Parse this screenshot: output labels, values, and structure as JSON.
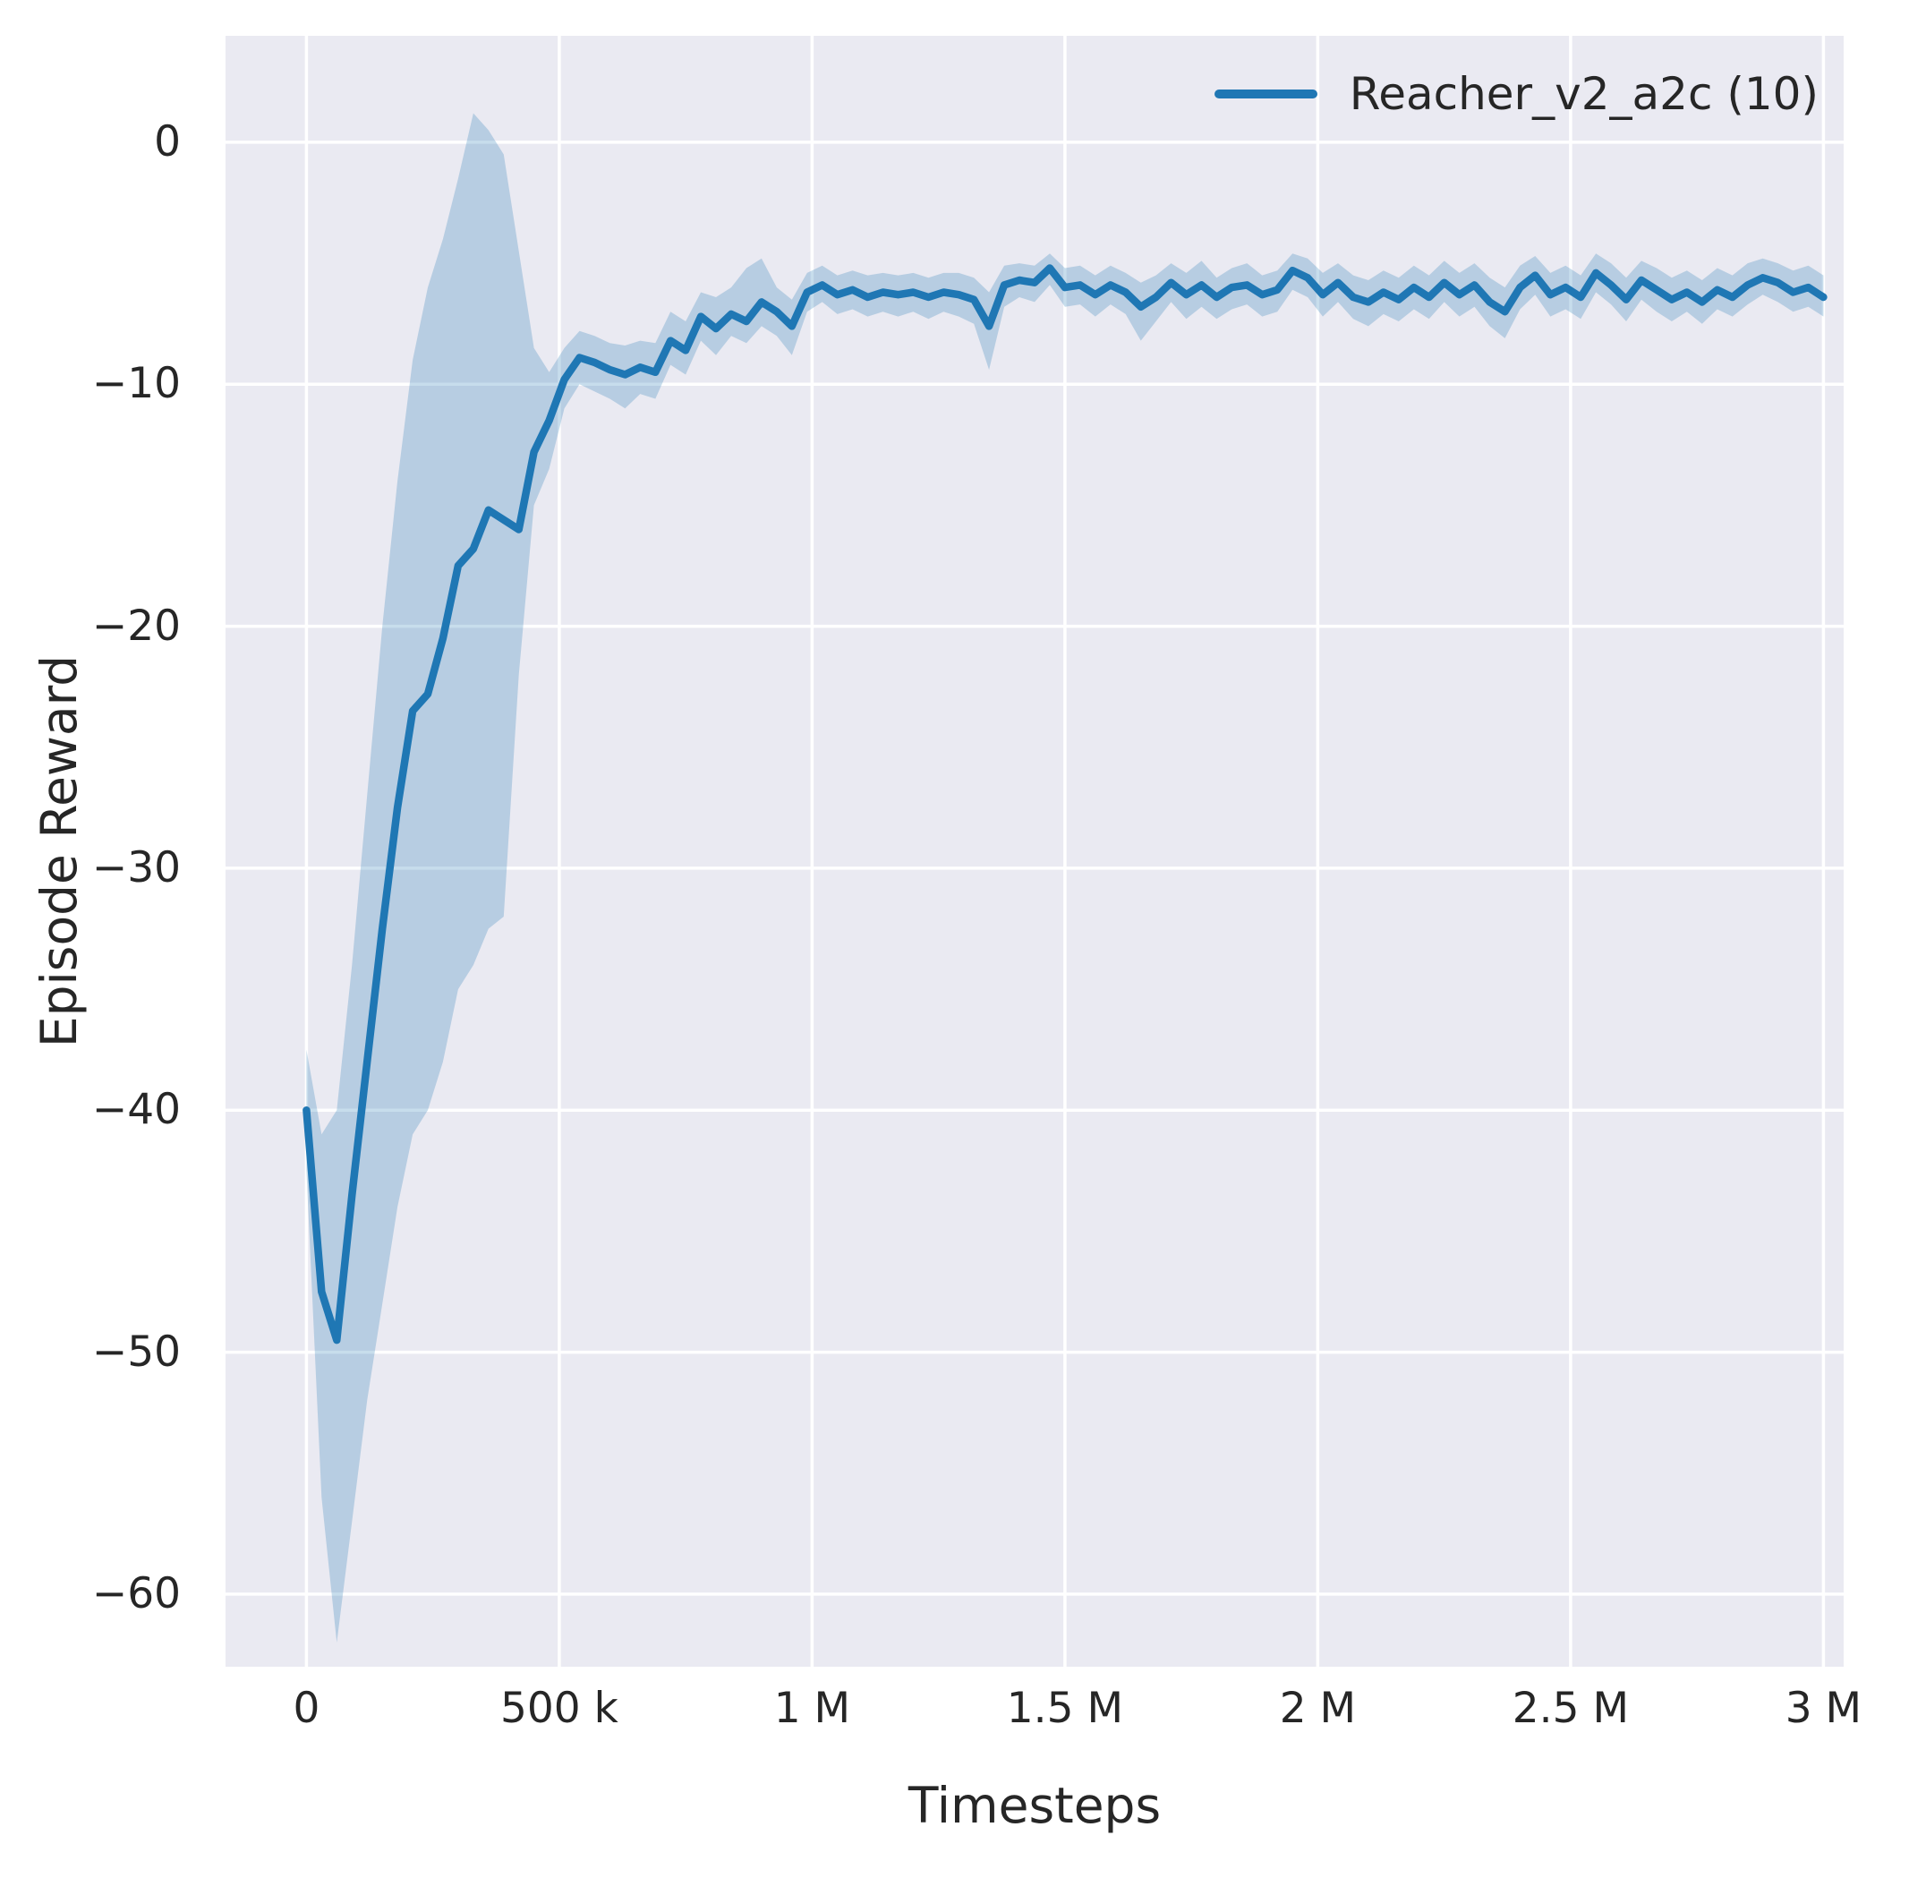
{
  "figure": {
    "background": "#ffffff",
    "plot_background": "#eaeaf2",
    "grid_color": "#ffffff",
    "text_color": "#262626"
  },
  "chart_data": {
    "type": "line",
    "title": "",
    "xlabel": "Timesteps",
    "ylabel": "Episode Reward",
    "xlim": [
      -160000,
      3040000
    ],
    "ylim": [
      -63,
      4.4
    ],
    "grid": true,
    "legend_position": "upper right",
    "xticks": {
      "values": [
        0,
        500000,
        1000000,
        1500000,
        2000000,
        2500000,
        3000000
      ],
      "labels": [
        "0",
        "500 k",
        "1 M",
        "1.5 M",
        "2 M",
        "2.5 M",
        "3 M"
      ]
    },
    "yticks": {
      "values": [
        0,
        -10,
        -20,
        -30,
        -40,
        -50,
        -60
      ],
      "labels": [
        "0",
        "−10",
        "−20",
        "−30",
        "−40",
        "−50",
        "−60"
      ]
    },
    "series": [
      {
        "name": "Reacher_v2_a2c (10)",
        "color": "#1f77b4",
        "band_color": "#1f77b4",
        "band_opacity": 0.25,
        "x": [
          0,
          30000,
          60000,
          90000,
          120000,
          150000,
          180000,
          210000,
          240000,
          270000,
          300000,
          330000,
          360000,
          390000,
          420000,
          450000,
          480000,
          510000,
          540000,
          570000,
          600000,
          630000,
          660000,
          690000,
          720000,
          750000,
          780000,
          810000,
          840000,
          870000,
          900000,
          930000,
          960000,
          990000,
          1020000,
          1050000,
          1080000,
          1110000,
          1140000,
          1170000,
          1200000,
          1230000,
          1260000,
          1290000,
          1320000,
          1350000,
          1380000,
          1410000,
          1440000,
          1470000,
          1500000,
          1530000,
          1560000,
          1590000,
          1620000,
          1650000,
          1680000,
          1710000,
          1740000,
          1770000,
          1800000,
          1830000,
          1860000,
          1890000,
          1920000,
          1950000,
          1980000,
          2010000,
          2040000,
          2070000,
          2100000,
          2130000,
          2160000,
          2190000,
          2220000,
          2250000,
          2280000,
          2310000,
          2340000,
          2370000,
          2400000,
          2430000,
          2460000,
          2490000,
          2520000,
          2550000,
          2580000,
          2610000,
          2640000,
          2670000,
          2700000,
          2730000,
          2760000,
          2790000,
          2820000,
          2850000,
          2880000,
          2910000,
          2940000,
          2970000,
          3000000
        ],
        "mean": [
          -40.0,
          -47.5,
          -49.5,
          -43.5,
          -38.0,
          -32.5,
          -27.5,
          -23.5,
          -22.8,
          -20.5,
          -17.5,
          -16.8,
          -15.2,
          -15.6,
          -16.0,
          -12.8,
          -11.5,
          -9.8,
          -8.9,
          -9.1,
          -9.4,
          -9.6,
          -9.3,
          -9.5,
          -8.2,
          -8.6,
          -7.2,
          -7.7,
          -7.1,
          -7.4,
          -6.6,
          -7.0,
          -7.6,
          -6.2,
          -5.9,
          -6.3,
          -6.1,
          -6.4,
          -6.2,
          -6.3,
          -6.2,
          -6.4,
          -6.2,
          -6.3,
          -6.5,
          -7.6,
          -5.9,
          -5.7,
          -5.8,
          -5.2,
          -6.0,
          -5.9,
          -6.3,
          -5.9,
          -6.2,
          -6.8,
          -6.4,
          -5.8,
          -6.3,
          -5.9,
          -6.4,
          -6.0,
          -5.9,
          -6.3,
          -6.1,
          -5.3,
          -5.6,
          -6.3,
          -5.8,
          -6.4,
          -6.6,
          -6.2,
          -6.5,
          -6.0,
          -6.4,
          -5.8,
          -6.3,
          -5.9,
          -6.6,
          -7.0,
          -6.0,
          -5.5,
          -6.3,
          -6.0,
          -6.4,
          -5.4,
          -5.9,
          -6.5,
          -5.7,
          -6.1,
          -6.5,
          -6.2,
          -6.6,
          -6.1,
          -6.4,
          -5.9,
          -5.6,
          -5.8,
          -6.2,
          -6.0,
          -6.4
        ],
        "lower": [
          -42.5,
          -56,
          -62,
          -57,
          -52,
          -48,
          -44,
          -41,
          -40,
          -38,
          -35,
          -34,
          -32.5,
          -32,
          -22,
          -15,
          -13.5,
          -11,
          -10,
          -10.3,
          -10.6,
          -11,
          -10.4,
          -10.6,
          -9.2,
          -9.6,
          -8.2,
          -8.8,
          -8.0,
          -8.3,
          -7.6,
          -8.0,
          -8.8,
          -7.0,
          -6.6,
          -7.1,
          -6.9,
          -7.2,
          -7.0,
          -7.2,
          -7.0,
          -7.3,
          -7.0,
          -7.2,
          -7.5,
          -9.4,
          -6.8,
          -6.4,
          -6.6,
          -5.9,
          -6.8,
          -6.7,
          -7.2,
          -6.7,
          -7.1,
          -8.2,
          -7.4,
          -6.6,
          -7.3,
          -6.8,
          -7.3,
          -6.9,
          -6.7,
          -7.2,
          -7.0,
          -6.1,
          -6.4,
          -7.2,
          -6.6,
          -7.3,
          -7.6,
          -7.1,
          -7.4,
          -6.9,
          -7.3,
          -6.6,
          -7.2,
          -6.8,
          -7.6,
          -8.1,
          -6.9,
          -6.3,
          -7.2,
          -6.9,
          -7.3,
          -6.2,
          -6.7,
          -7.4,
          -6.5,
          -7.0,
          -7.4,
          -7.0,
          -7.5,
          -6.9,
          -7.2,
          -6.7,
          -6.3,
          -6.6,
          -7.0,
          -6.8,
          -7.2
        ],
        "upper": [
          -37.5,
          -41,
          -40,
          -34,
          -27,
          -20,
          -14,
          -9,
          -6,
          -4,
          -1.5,
          1.2,
          0.5,
          -0.5,
          -4.5,
          -8.5,
          -9.5,
          -8.5,
          -7.8,
          -8.0,
          -8.3,
          -8.4,
          -8.2,
          -8.3,
          -7.0,
          -7.4,
          -6.2,
          -6.4,
          -6.0,
          -5.2,
          -4.8,
          -6.0,
          -6.5,
          -5.4,
          -5.1,
          -5.5,
          -5.3,
          -5.5,
          -5.4,
          -5.5,
          -5.4,
          -5.6,
          -5.4,
          -5.4,
          -5.6,
          -6.2,
          -5.1,
          -5.0,
          -5.1,
          -4.6,
          -5.2,
          -5.1,
          -5.5,
          -5.1,
          -5.4,
          -5.8,
          -5.5,
          -5.0,
          -5.4,
          -4.9,
          -5.6,
          -5.2,
          -5.0,
          -5.5,
          -5.3,
          -4.6,
          -4.8,
          -5.4,
          -5.0,
          -5.5,
          -5.7,
          -5.3,
          -5.6,
          -5.1,
          -5.5,
          -4.9,
          -5.4,
          -5.0,
          -5.6,
          -6.0,
          -5.1,
          -4.7,
          -5.4,
          -5.1,
          -5.5,
          -4.6,
          -5.0,
          -5.6,
          -4.9,
          -5.2,
          -5.6,
          -5.3,
          -5.7,
          -5.2,
          -5.5,
          -5.0,
          -4.8,
          -5.0,
          -5.3,
          -5.1,
          -5.5
        ]
      }
    ]
  }
}
